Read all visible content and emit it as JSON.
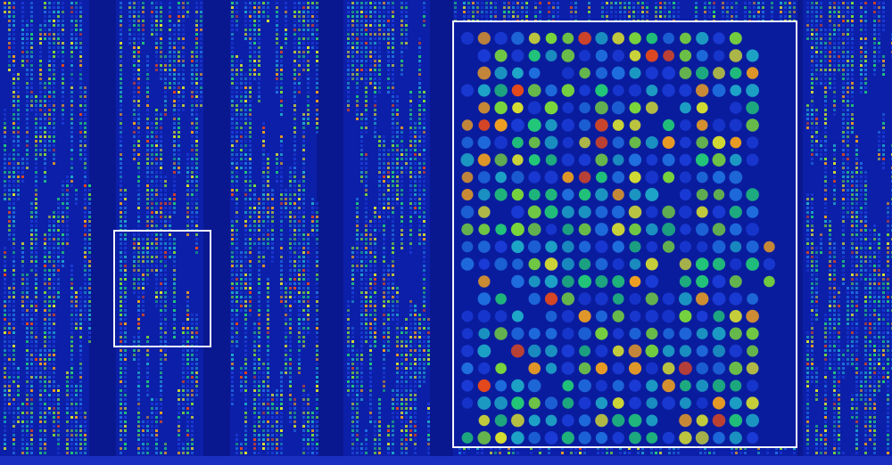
{
  "image": {
    "subject": "",
    "colors": {
      "background": "#0c1fa8",
      "channel_gap": "#0a1890",
      "frame": "#f2f4ff",
      "spot_scale": [
        "#1a3bd6",
        "#1f6fe0",
        "#1ea8c8",
        "#22c878",
        "#7ad83a",
        "#d8e030",
        "#f0a020",
        "#e84a1a"
      ]
    }
  }
}
